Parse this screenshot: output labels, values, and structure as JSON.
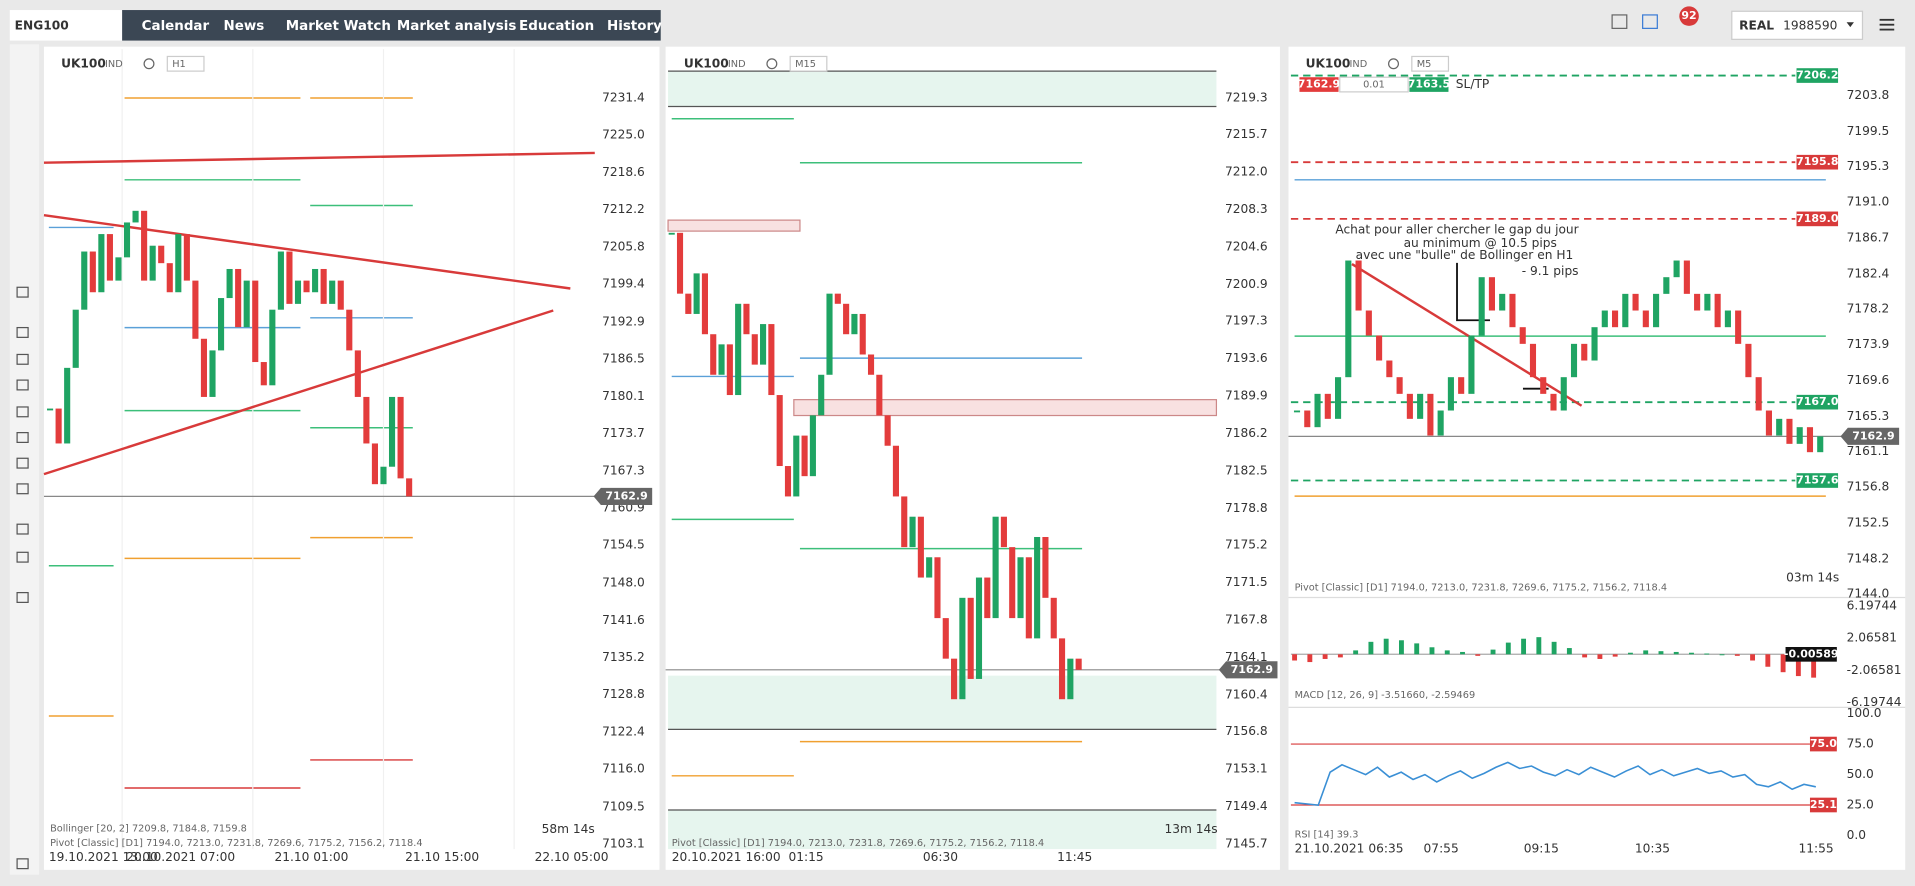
{
  "top_bar": {
    "tab": "ENG100",
    "nav": [
      "Calendar",
      "News",
      "Market Watch",
      "Market analysis",
      "Education",
      "History"
    ],
    "notifications": 92,
    "account_type": "REAL",
    "account_id": "1988590"
  },
  "panels": [
    {
      "symbol": "UK100",
      "asset": "IND",
      "timeframe": "H1",
      "price_labels": [
        "7231.4",
        "7225.0",
        "7218.6",
        "7212.2",
        "7205.8",
        "7199.4",
        "7192.9",
        "7186.5",
        "7180.1",
        "7173.7",
        "7167.3",
        "7160.9",
        "7154.5",
        "7148.0",
        "7141.6",
        "7135.2",
        "7128.8",
        "7122.4",
        "7116.0",
        "7109.5",
        "7103.1"
      ],
      "current_price": "7162.9",
      "time_labels": [
        "19.10.2021 13:00",
        "20.10.2021 07:00",
        "21.10 01:00",
        "21.10 15:00",
        "22.10 05:00"
      ],
      "indicators": [
        "Bollinger [20, 2] 7209.8, 7184.8, 7159.8",
        "Pivot [Classic] [D1] 7194.0, 7213.0, 7231.8, 7269.6, 7175.2, 7156.2, 7118.4"
      ],
      "timer": "58m 14s",
      "closes": [
        7178,
        7172,
        7185,
        7195,
        7205,
        7198,
        7208,
        7200,
        7204,
        7210,
        7212,
        7200,
        7206,
        7203,
        7198,
        7208,
        7200,
        7190,
        7180,
        7188,
        7197,
        7202,
        7192,
        7200,
        7186,
        7182,
        7195,
        7205,
        7196,
        7200,
        7198,
        7202,
        7196,
        7200,
        7195,
        7188,
        7180,
        7172,
        7165,
        7168,
        7180,
        7166,
        7162.9
      ]
    },
    {
      "symbol": "UK100",
      "asset": "IND",
      "timeframe": "M15",
      "price_labels": [
        "7219.3",
        "7215.7",
        "7212.0",
        "7208.3",
        "7204.6",
        "7200.9",
        "7197.3",
        "7193.6",
        "7189.9",
        "7186.2",
        "7182.5",
        "7178.8",
        "7175.2",
        "7171.5",
        "7167.8",
        "7164.1",
        "7160.4",
        "7156.8",
        "7153.1",
        "7149.4",
        "7145.7"
      ],
      "current_price": "7162.9",
      "time_labels": [
        "20.10.2021 16:00",
        "01:15",
        "06:30",
        "11:45"
      ],
      "indicators": [
        "Pivot [Classic] [D1] 7194.0, 7213.0, 7231.8, 7269.6, 7175.2, 7156.2, 7118.4"
      ],
      "timer": "13m 14s",
      "closes": [
        7206,
        7200,
        7198,
        7202,
        7196,
        7192,
        7195,
        7190,
        7199,
        7196,
        7193,
        7197,
        7190,
        7183,
        7180,
        7186,
        7182,
        7188,
        7192,
        7200,
        7199,
        7196,
        7198,
        7194,
        7192,
        7188,
        7185,
        7180,
        7175,
        7178,
        7172,
        7174,
        7168,
        7164,
        7160,
        7170,
        7162,
        7172,
        7168,
        7178,
        7175,
        7168,
        7174,
        7166,
        7176,
        7170,
        7166,
        7160,
        7164,
        7162.9
      ]
    },
    {
      "symbol": "UK100",
      "asset": "IND",
      "timeframe": "M5",
      "price_labels": [
        "7203.8",
        "7199.5",
        "7195.3",
        "7191.0",
        "7186.7",
        "7182.4",
        "7178.2",
        "7173.9",
        "7169.6",
        "7165.3",
        "7161.1",
        "7156.8",
        "7152.5",
        "7148.2",
        "7144.0"
      ],
      "current_price": "7162.9",
      "time_labels": [
        "21.10.2021 06:35",
        "07:55",
        "09:15",
        "10:35",
        "11:55"
      ],
      "indicators": [
        "Pivot [Classic] [D1] 7194.0, 7213.0, 7231.8, 7269.6, 7175.2, 7156.2, 7118.4"
      ],
      "timer": "03m 14s",
      "closes": [
        7166,
        7164,
        7168,
        7165,
        7170,
        7184,
        7178,
        7175,
        7172,
        7170,
        7168,
        7165,
        7168,
        7163,
        7166,
        7170,
        7168,
        7175,
        7182,
        7178,
        7180,
        7176,
        7174,
        7170,
        7168,
        7166,
        7170,
        7174,
        7172,
        7176,
        7178,
        7176,
        7180,
        7178,
        7176,
        7180,
        7182,
        7184,
        7180,
        7178,
        7180,
        7176,
        7178,
        7174,
        7170,
        7166,
        7163,
        7165,
        7162,
        7164,
        7161,
        7162.9
      ],
      "order_bar": {
        "sell": "7162.9",
        "volume": "0.01",
        "buy": "7163.5",
        "sltp": "SL/TP"
      },
      "level_labels": [
        {
          "label": "7206.2",
          "color": "#1fa463"
        },
        {
          "label": "7195.8",
          "color": "#d83a3a"
        },
        {
          "label": "7189.0",
          "color": "#d83a3a"
        },
        {
          "label": "7167.0",
          "color": "#1fa463"
        },
        {
          "label": "7157.6",
          "color": "#1fa463"
        }
      ],
      "annotation": [
        "Achat pour aller chercher le gap du jour",
        "au minimum @ 10.5 pips",
        "avec une \"bulle\" de Bollinger en H1",
        "- 9.1 pips"
      ],
      "macd": {
        "labels": [
          "6.19744",
          "2.06581",
          "-2.06581",
          "-6.19744"
        ],
        "current": "-0.00589",
        "legend": "MACD [12, 26, 9] -3.51660, -2.59469",
        "histogram": [
          -0.8,
          -1.0,
          -0.6,
          -0.4,
          0.5,
          1.6,
          2.0,
          1.8,
          1.4,
          0.9,
          0.5,
          0.3,
          -0.2,
          0.6,
          1.5,
          2.0,
          2.2,
          1.6,
          0.8,
          -0.4,
          -0.6,
          -0.3,
          0.2,
          0.5,
          0.4,
          0.3,
          0.2,
          0.1,
          0.0,
          -0.2,
          -0.8,
          -1.6,
          -2.3,
          -2.8,
          -3.0
        ]
      },
      "rsi": {
        "labels": [
          "100.0",
          "75.0",
          "50.0",
          "25.0",
          "0.0"
        ],
        "markers": [
          "75.0",
          "25.1"
        ],
        "legend": "RSI [14] 39.3",
        "values": [
          27,
          26,
          25,
          52,
          58,
          54,
          50,
          56,
          48,
          52,
          46,
          50,
          44,
          49,
          53,
          47,
          51,
          56,
          60,
          55,
          57,
          52,
          49,
          54,
          50,
          56,
          52,
          48,
          53,
          57,
          50,
          54,
          49,
          52,
          55,
          51,
          53,
          48,
          50,
          42,
          40,
          44,
          38,
          42,
          40
        ]
      }
    }
  ]
}
